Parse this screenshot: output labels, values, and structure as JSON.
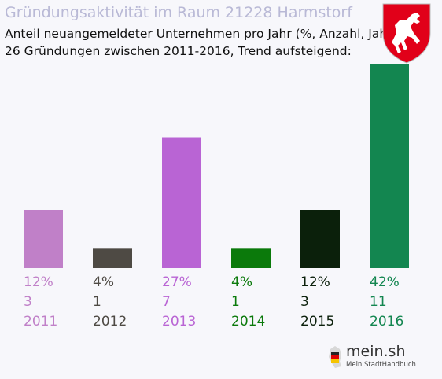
{
  "header": {
    "title": "Gründungsaktivität im Raum 21228 Harmstorf",
    "subtitle_line1": "Anteil neuangemeldeter Unternehmen pro Jahr (%, Anzahl, Jahr)",
    "subtitle_line2": "26 Gründungen zwischen 2011-2016, Trend aufsteigend:"
  },
  "crest": {
    "icon": "horse-crest-icon",
    "colors": {
      "field": "#e10019",
      "horse": "#ffffff"
    }
  },
  "logo": {
    "icon": "germany-map-icon",
    "text": "mein.sh",
    "subtext": "Mein StadtHandbuch"
  },
  "chart_data": {
    "type": "bar",
    "categories": [
      "2011",
      "2012",
      "2013",
      "2014",
      "2015",
      "2016"
    ],
    "values": [
      12,
      4,
      27,
      4,
      12,
      42
    ],
    "value_labels": [
      "12%",
      "4%",
      "27%",
      "4%",
      "12%",
      "42%"
    ],
    "counts": [
      "3",
      "1",
      "7",
      "1",
      "3",
      "11"
    ],
    "colors": [
      "#c080c8",
      "#4e4a44",
      "#b964d4",
      "#0b7a0b",
      "#0b200b",
      "#138650"
    ],
    "ylim": [
      0,
      42
    ],
    "grid": false,
    "legend": "none"
  }
}
